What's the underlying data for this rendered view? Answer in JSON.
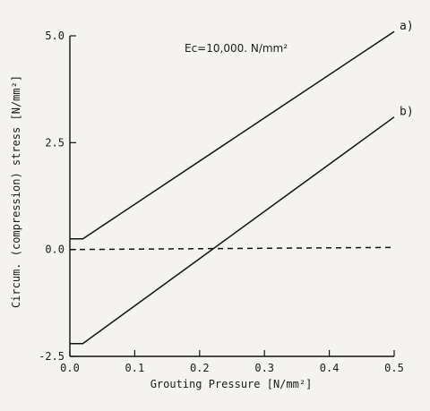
{
  "chart_data": {
    "type": "line",
    "xlabel": "Grouting Pressure [N/mm²]",
    "ylabel": "Circum. (compression) stress [N/mm²]",
    "annotation": "Ec=10,000. N/mm²",
    "xlim": [
      0.0,
      0.5
    ],
    "ylim": [
      -2.5,
      5.0
    ],
    "x_ticks": [
      "0.0",
      "0.1",
      "0.2",
      "0.3",
      "0.4",
      "0.5"
    ],
    "y_ticks": [
      "-2.5",
      "0.0",
      "2.5",
      "5.0"
    ],
    "series": [
      {
        "name": "a)",
        "style": "solid",
        "x": [
          0.0,
          0.02,
          0.5
        ],
        "y": [
          0.25,
          0.25,
          5.1
        ]
      },
      {
        "name": "b)",
        "style": "solid",
        "x": [
          0.0,
          0.02,
          0.5
        ],
        "y": [
          -2.2,
          -2.2,
          3.1
        ]
      },
      {
        "name": "",
        "style": "dashed",
        "x": [
          0.0,
          0.5
        ],
        "y": [
          0.0,
          0.05
        ]
      }
    ],
    "colors": {
      "line": "#111111",
      "background": "#f4f3ef"
    }
  }
}
